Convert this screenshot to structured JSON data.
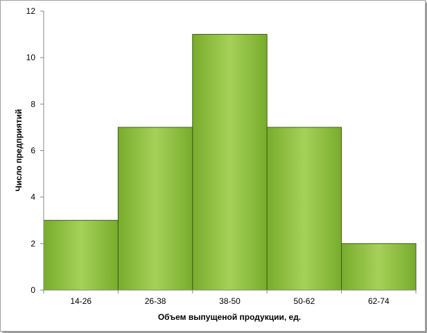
{
  "chart_data": {
    "type": "bar",
    "categories": [
      "14-26",
      "26-38",
      "38-50",
      "50-62",
      "62-74"
    ],
    "values": [
      3,
      7,
      11,
      7,
      2
    ],
    "xlabel": "Объем выпущеной продукции, ед.",
    "ylabel": "Число  предприятий",
    "ylim": [
      0,
      12
    ],
    "yticks": [
      "0",
      "2",
      "4",
      "6",
      "8",
      "10",
      "12"
    ],
    "grid": false,
    "legend": "none"
  },
  "colors": {
    "bar_fill_top": "#a6d05a",
    "bar_fill_bottom": "#78ac2c",
    "bar_stroke": "#3f5a17",
    "axis": "#868686"
  }
}
